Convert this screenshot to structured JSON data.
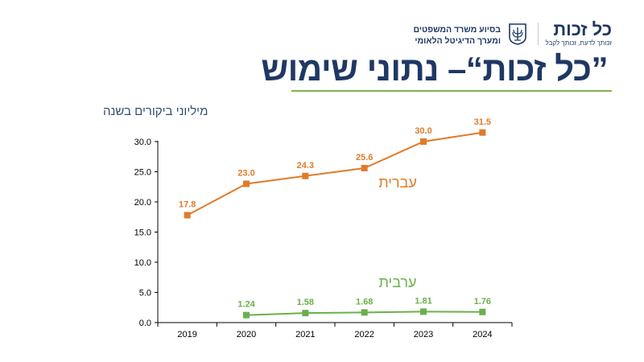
{
  "header": {
    "brand_name": "כל זכות",
    "brand_tagline": "זכותך לדעת, זכותך לקבל",
    "support_line1": "בסיוע משרד המשפטים",
    "support_line2": "ומערך הדיגיטל הלאומי"
  },
  "slide": {
    "title": "”כל זכות“– נתוני שימוש"
  },
  "colors": {
    "title": "#1f3864",
    "underline": "#7fb24b",
    "hebrew_series": "#e07b2a",
    "arabic_series": "#6ab04c"
  },
  "chart_data": {
    "type": "line",
    "ylabel": "מיליוני ביקורים בשנה",
    "x": [
      "2019",
      "2020",
      "2021",
      "2022",
      "2023",
      "2024"
    ],
    "ylim": [
      0,
      30
    ],
    "yticks": [
      "0.0",
      "5.0",
      "10.0",
      "15.0",
      "20.0",
      "25.0",
      "30.0"
    ],
    "grid": false,
    "series": [
      {
        "name": "עברית",
        "color": "#e07b2a",
        "values": [
          17.8,
          23.0,
          24.3,
          25.6,
          30.0,
          31.5
        ],
        "labels": [
          "17.8",
          "23.0",
          "24.3",
          "25.6",
          "30.0",
          "31.5"
        ]
      },
      {
        "name": "ערבית",
        "color": "#6ab04c",
        "values": [
          null,
          1.24,
          1.58,
          1.68,
          1.81,
          1.76
        ],
        "labels": [
          "",
          "1.24",
          "1.58",
          "1.68",
          "1.81",
          "1.76"
        ]
      }
    ]
  }
}
